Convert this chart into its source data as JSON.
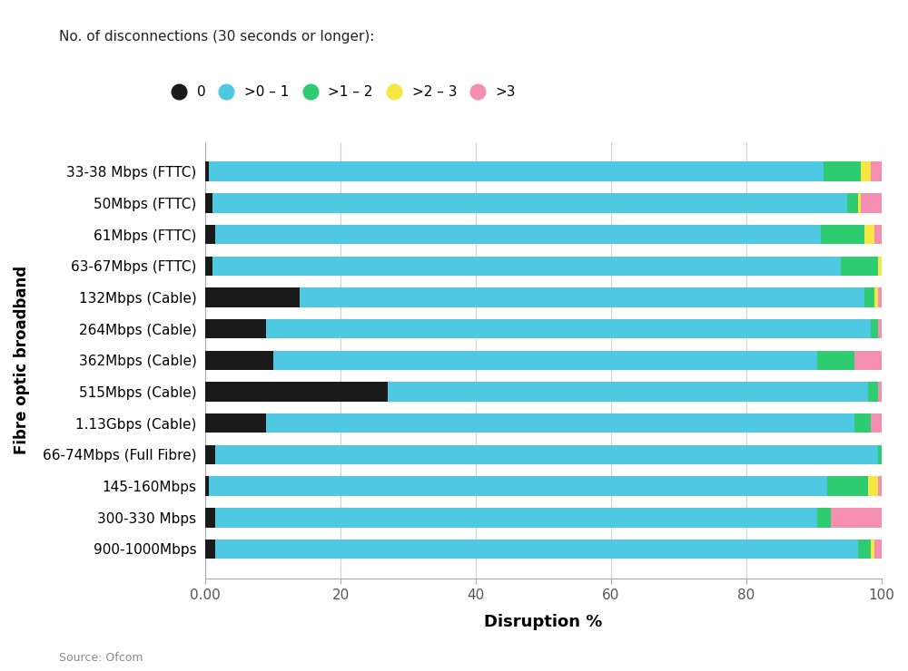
{
  "categories": [
    "33-38 Mbps (FTTC)",
    "50Mbps (FTTC)",
    "61Mbps (FTTC)",
    "63-67Mbps (FTTC)",
    "132Mbps (Cable)",
    "264Mbps (Cable)",
    "362Mbps (Cable)",
    "515Mbps (Cable)",
    "1.13Gbps (Cable)",
    "66-74Mbps (Full Fibre)",
    "145-160Mbps",
    "300-330 Mbps",
    "900-1000Mbps"
  ],
  "segments": [
    "0",
    ">0–1",
    ">1–2",
    ">2–3",
    ">3"
  ],
  "colors": [
    "#1a1a1a",
    "#4ec9e1",
    "#2ecc71",
    "#f5e642",
    "#f48fb1"
  ],
  "data": {
    "0": [
      0.5,
      1.0,
      1.5,
      1.0,
      14.0,
      9.0,
      10.0,
      27.0,
      9.0,
      1.5,
      0.5,
      1.5,
      1.5
    ],
    ">0-1": [
      91.0,
      94.0,
      89.5,
      93.0,
      83.5,
      89.5,
      80.5,
      71.0,
      87.0,
      98.0,
      91.5,
      89.0,
      95.0
    ],
    ">1-2": [
      5.5,
      1.5,
      6.5,
      5.5,
      1.5,
      1.0,
      5.5,
      1.5,
      2.5,
      0.5,
      6.0,
      2.0,
      2.0
    ],
    ">2-3": [
      1.5,
      0.5,
      1.5,
      0.5,
      0.5,
      0.0,
      0.0,
      0.0,
      0.0,
      0.0,
      1.5,
      0.0,
      0.5
    ],
    ">3": [
      1.5,
      3.0,
      1.0,
      0.0,
      0.5,
      0.5,
      4.0,
      0.5,
      1.5,
      0.0,
      0.5,
      7.5,
      1.0
    ]
  },
  "xlabel": "Disruption %",
  "ylabel": "Fibre optic broadband",
  "legend_title": "No. of disconnections (30 seconds or longer):",
  "legend_labels": [
    "0",
    ">0 – 1",
    ">1 – 2",
    ">2 – 3",
    ">3"
  ],
  "source": "Source: Ofcom",
  "xlim": [
    0,
    100
  ],
  "xticks": [
    0,
    20,
    40,
    60,
    80,
    100
  ],
  "xticklabels": [
    "0.00",
    "20",
    "40",
    "60",
    "80",
    "100"
  ],
  "background_color": "#ffffff",
  "grid_color": "#d0d0d0"
}
